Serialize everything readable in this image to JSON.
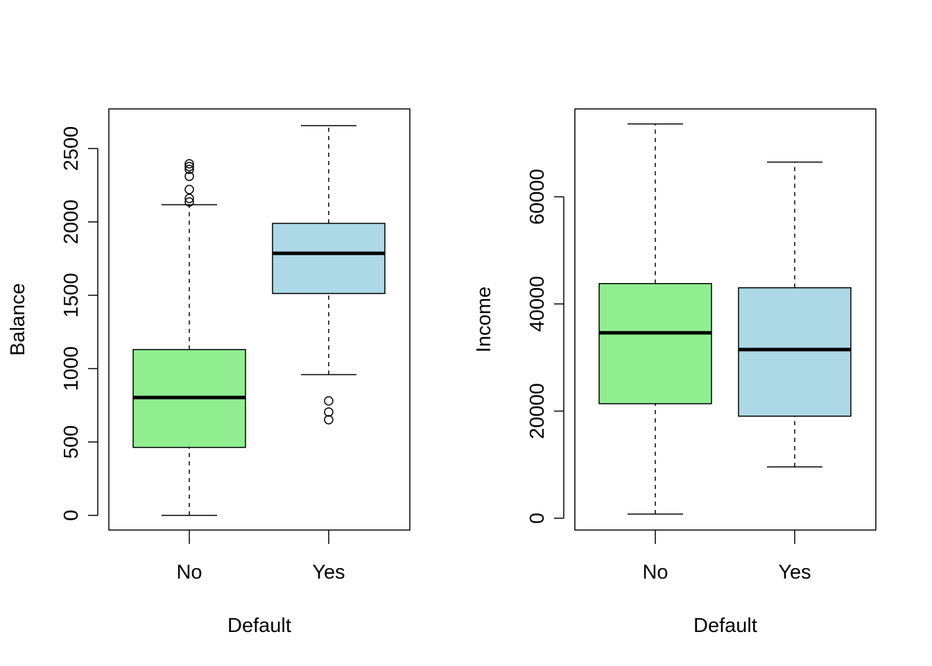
{
  "chart_data": [
    {
      "type": "boxplot",
      "title": "",
      "xlabel": "Default",
      "ylabel": "Balance",
      "categories": [
        "No",
        "Yes"
      ],
      "ylim": [
        -100,
        2770
      ],
      "yticks": [
        0,
        500,
        1000,
        1500,
        2000,
        2500
      ],
      "colors": [
        "#90EE90",
        "#ADD8E6"
      ],
      "boxes": [
        {
          "category": "No",
          "whisker_low": 0,
          "q1": 463,
          "median": 803,
          "q3": 1130,
          "whisker_high": 2117,
          "outliers": [
            2136,
            2160,
            2221,
            2311,
            2358,
            2377,
            2396
          ]
        },
        {
          "category": "Yes",
          "whisker_low": 959,
          "q1": 1512,
          "median": 1786,
          "q3": 1990,
          "whisker_high": 2656,
          "outliers": [
            652,
            704,
            780
          ]
        }
      ]
    },
    {
      "type": "boxplot",
      "title": "",
      "xlabel": "Default",
      "ylabel": "Income",
      "categories": [
        "No",
        "Yes"
      ],
      "ylim": [
        -2200,
        76400
      ],
      "yticks": [
        0,
        20000,
        40000,
        60000
      ],
      "colors": [
        "#90EE90",
        "#ADD8E6"
      ],
      "boxes": [
        {
          "category": "No",
          "whisker_low": 777,
          "q1": 21380,
          "median": 34600,
          "q3": 43800,
          "whisker_high": 73600,
          "outliers": []
        },
        {
          "category": "Yes",
          "whisker_low": 9590,
          "q1": 19050,
          "median": 31490,
          "q3": 43020,
          "whisker_high": 66480,
          "outliers": []
        }
      ]
    }
  ]
}
